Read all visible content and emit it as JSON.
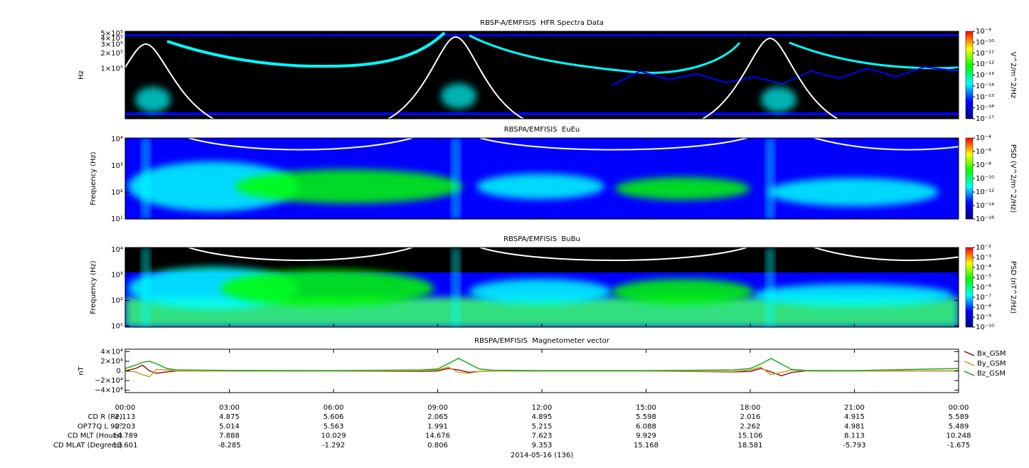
{
  "chart_data": [
    {
      "type": "spectrogram",
      "title": "RBSP-A/EMFISIS  HFR Spectra Data",
      "ylabel": "Hz",
      "ylog": true,
      "ylim": [
        10000,
        550000
      ],
      "yticks": [
        {
          "value": 500000,
          "label": "5×10⁵"
        },
        {
          "value": 400000,
          "label": "4×10⁵"
        },
        {
          "value": 300000,
          "label": "3×10⁵"
        },
        {
          "value": 200000,
          "label": "2×10⁵"
        },
        {
          "value": 100000,
          "label": "1×10⁵"
        }
      ],
      "colorbar": {
        "label": "V^2/m^2/Hz",
        "log": true,
        "lim": [
          1e-17,
          1e-09
        ],
        "ticks": [
          {
            "value": 1e-09,
            "label": "10⁻⁹"
          },
          {
            "value": 1e-10,
            "label": "10⁻¹⁰"
          },
          {
            "value": 1e-11,
            "label": "10⁻¹¹"
          },
          {
            "value": 1e-12,
            "label": "10⁻¹²"
          },
          {
            "value": 1e-13,
            "label": "10⁻¹³"
          },
          {
            "value": 1e-14,
            "label": "10⁻¹⁴"
          },
          {
            "value": 1e-15,
            "label": "10⁻¹⁵"
          },
          {
            "value": 1e-16,
            "label": "10⁻¹⁶"
          },
          {
            "value": 1e-17,
            "label": "10⁻¹⁷"
          }
        ]
      },
      "colormap": [
        "#000080",
        "#0000ff",
        "#00ffff",
        "#00ff00",
        "#ffff00",
        "#ff0000"
      ]
    },
    {
      "type": "spectrogram",
      "title": "RBSPA/EMFISIS  EuEu",
      "ylabel": "Frequency (Hz)",
      "ylog": true,
      "ylim": [
        10,
        11000
      ],
      "yticks": [
        {
          "value": 10,
          "label": "10¹"
        },
        {
          "value": 100,
          "label": "10²"
        },
        {
          "value": 1000,
          "label": "10³"
        },
        {
          "value": 10000,
          "label": "10⁴"
        }
      ],
      "colorbar": {
        "label": "PSD (V^2/m^2/Hz)",
        "log": true,
        "lim": [
          1e-16,
          0.0001
        ],
        "ticks": [
          {
            "value": 0.0001,
            "label": "10⁻⁴"
          },
          {
            "value": 1e-06,
            "label": "10⁻⁶"
          },
          {
            "value": 1e-08,
            "label": "10⁻⁸"
          },
          {
            "value": 1e-10,
            "label": "10⁻¹⁰"
          },
          {
            "value": 1e-12,
            "label": "10⁻¹²"
          },
          {
            "value": 1e-14,
            "label": "10⁻¹⁴"
          },
          {
            "value": 1e-16,
            "label": "10⁻¹⁶"
          }
        ]
      },
      "colormap": [
        "#000080",
        "#0000ff",
        "#00ffff",
        "#00ff00",
        "#ffff00",
        "#ff0000"
      ]
    },
    {
      "type": "spectrogram",
      "title": "RBSPA/EMFISIS  BuBu",
      "ylabel": "Frequency (Hz)",
      "ylog": true,
      "ylim": [
        9,
        12000
      ],
      "yticks": [
        {
          "value": 10,
          "label": "10¹"
        },
        {
          "value": 100,
          "label": "10²"
        },
        {
          "value": 1000,
          "label": "10³"
        },
        {
          "value": 10000,
          "label": "10⁴"
        }
      ],
      "colorbar": {
        "label": "PSD (nT^2/Hz)",
        "log": true,
        "lim": [
          1e-10,
          0.01
        ],
        "ticks": [
          {
            "value": 0.01,
            "label": "10⁻²"
          },
          {
            "value": 0.001,
            "label": "10⁻³"
          },
          {
            "value": 0.0001,
            "label": "10⁻⁴"
          },
          {
            "value": 1e-05,
            "label": "10⁻⁵"
          },
          {
            "value": 1e-06,
            "label": "10⁻⁶"
          },
          {
            "value": 1e-07,
            "label": "10⁻⁷"
          },
          {
            "value": 1e-08,
            "label": "10⁻⁸"
          },
          {
            "value": 1e-09,
            "label": "10⁻⁹"
          },
          {
            "value": 1e-10,
            "label": "10⁻¹⁰"
          }
        ]
      },
      "colormap": [
        "#000080",
        "#0000ff",
        "#00ffff",
        "#00ff00",
        "#ffff00",
        "#ff0000"
      ]
    },
    {
      "type": "line",
      "title": "RBSPA/EMFISIS  Magnetometer vector",
      "ylabel": "nT",
      "ylim": [
        -45000,
        45000
      ],
      "yticks": [
        {
          "value": 40000,
          "label": "4×10⁴"
        },
        {
          "value": 20000,
          "label": "2×10⁴"
        },
        {
          "value": 0,
          "label": "0."
        },
        {
          "value": -20000,
          "label": "−2×10⁴"
        },
        {
          "value": -40000,
          "label": "−4×10⁴"
        }
      ],
      "xlim": [
        0,
        24
      ],
      "xticks": [
        {
          "value": 0,
          "label": "00:00"
        },
        {
          "value": 3,
          "label": "03:00"
        },
        {
          "value": 6,
          "label": "06:00"
        },
        {
          "value": 9,
          "label": "09:00"
        },
        {
          "value": 12,
          "label": "12:00"
        },
        {
          "value": 15,
          "label": "15:00"
        },
        {
          "value": 18,
          "label": "18:00"
        },
        {
          "value": 21,
          "label": "21:00"
        },
        {
          "value": 24,
          "label": "00:00"
        }
      ],
      "xlabel": "2014-05-16 (136)",
      "x": [
        0,
        0.3,
        0.5,
        0.7,
        0.9,
        1.2,
        1.5,
        3,
        6,
        8.5,
        9.0,
        9.3,
        9.6,
        9.9,
        10.2,
        10.6,
        12,
        15,
        17.5,
        18.0,
        18.3,
        18.6,
        18.9,
        19.2,
        19.6,
        21,
        24
      ],
      "series": [
        {
          "name": "Bx_GSM",
          "color": "#8b1a1a",
          "values": [
            0,
            5000,
            12000,
            0,
            -5000,
            -2000,
            0,
            0,
            0,
            -1000,
            0,
            5000,
            2000,
            -3000,
            -1000,
            0,
            0,
            0,
            -2000,
            -1000,
            5000,
            -2000,
            -10000,
            -3000,
            0,
            0,
            0
          ]
        },
        {
          "name": "By_GSM",
          "color": "#c8a030",
          "values": [
            0,
            -2000,
            -8000,
            -12000,
            3000,
            2000,
            0,
            0,
            0,
            0,
            2000,
            8000,
            -3000,
            -5000,
            -1000,
            0,
            0,
            0,
            -1000,
            2000,
            8000,
            -8000,
            -3000,
            2000,
            0,
            0,
            0
          ]
        },
        {
          "name": "Bz_GSM",
          "color": "#22aa22",
          "values": [
            5000,
            12000,
            18000,
            20000,
            15000,
            5000,
            2000,
            1000,
            800,
            2000,
            4000,
            15000,
            26000,
            15000,
            4000,
            1500,
            800,
            800,
            2000,
            5000,
            14000,
            26000,
            14000,
            3000,
            1000,
            800,
            5000
          ]
        }
      ],
      "ephemeris": [
        {
          "label": "CD R (Re)",
          "values": [
            2.113,
            4.875,
            5.606,
            2.065,
            4.895,
            5.598,
            2.016,
            4.915,
            5.589
          ]
        },
        {
          "label": "OP77Q L 90⁰",
          "values": [
            2.203,
            5.014,
            5.563,
            1.991,
            5.215,
            6.088,
            2.262,
            4.981,
            5.489
          ]
        },
        {
          "label": "CD MLT (Hours)",
          "values": [
            14.789,
            7.888,
            10.029,
            14.676,
            7.623,
            9.929,
            15.106,
            8.113,
            10.248
          ]
        },
        {
          "label": "CD MLAT (Degrees)",
          "values": [
            13.601,
            -8.285,
            -1.292,
            0.806,
            9.353,
            15.168,
            18.581,
            -5.793,
            -1.675
          ]
        }
      ]
    }
  ]
}
